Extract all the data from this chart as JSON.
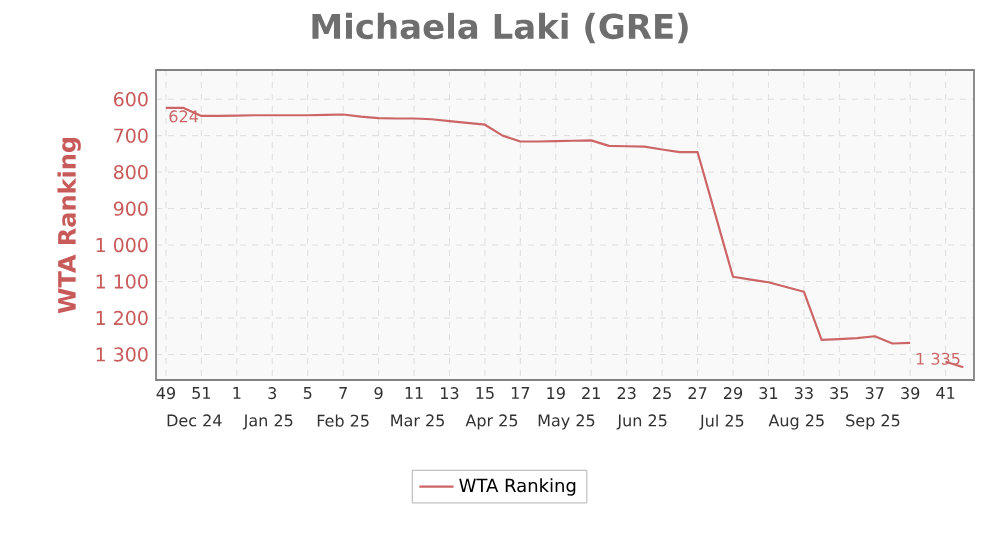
{
  "chart_data": {
    "type": "line",
    "title": "Michaela Laki (GRE)",
    "ylabel": "WTA Ranking",
    "categories": [
      "49",
      null,
      "51",
      null,
      "1",
      null,
      "3",
      null,
      "5",
      null,
      "7",
      null,
      "9",
      null,
      "11",
      null,
      "13",
      null,
      "15",
      null,
      "17",
      null,
      "19",
      null,
      "21",
      null,
      "23",
      null,
      "25",
      null,
      "27",
      null,
      "29",
      null,
      "31",
      null,
      "33",
      null,
      "35",
      null,
      "37",
      null,
      "39",
      null,
      "41",
      null
    ],
    "series": [
      {
        "name": "WTA Ranking",
        "color": "#cc6666",
        "values": [
          624,
          624,
          646,
          646,
          645,
          644,
          644,
          644,
          644,
          643,
          642,
          648,
          652,
          653,
          653,
          655,
          660,
          665,
          670,
          700,
          716,
          716,
          715,
          714,
          713,
          728,
          729,
          730,
          738,
          745,
          745,
          916,
          1087,
          1095,
          1102,
          1115,
          1128,
          1260,
          1258,
          1255,
          1250,
          1270,
          1268,
          null,
          1320,
          1335
        ],
        "value_labels": [
          "624",
          null,
          null,
          null,
          null,
          null,
          null,
          null,
          null,
          null,
          null,
          null,
          null,
          null,
          null,
          null,
          null,
          null,
          null,
          null,
          null,
          null,
          null,
          null,
          null,
          null,
          null,
          null,
          null,
          null,
          null,
          null,
          null,
          null,
          null,
          null,
          null,
          null,
          null,
          null,
          null,
          null,
          null,
          null,
          null,
          "1 335"
        ]
      }
    ],
    "ylim": [
      1370,
      520
    ],
    "yticks": [
      {
        "value": 600,
        "label": "600"
      },
      {
        "value": 700,
        "label": "700"
      },
      {
        "value": 800,
        "label": "800"
      },
      {
        "value": 900,
        "label": "900"
      },
      {
        "value": 1000,
        "label": "1 000"
      },
      {
        "value": 1100,
        "label": "1 100"
      },
      {
        "value": 1200,
        "label": "1 200"
      },
      {
        "value": 1300,
        "label": "1 300"
      }
    ],
    "grid": true,
    "legend": "bottom",
    "marker": "none",
    "line_style": "solid",
    "annotations": [
      "Dec 24",
      "Jan 25",
      "Feb 25",
      "Mar 25",
      "Apr 25",
      "May 25",
      "Jun 25",
      "Jul 25",
      "Aug 25",
      "Sep 25"
    ]
  }
}
